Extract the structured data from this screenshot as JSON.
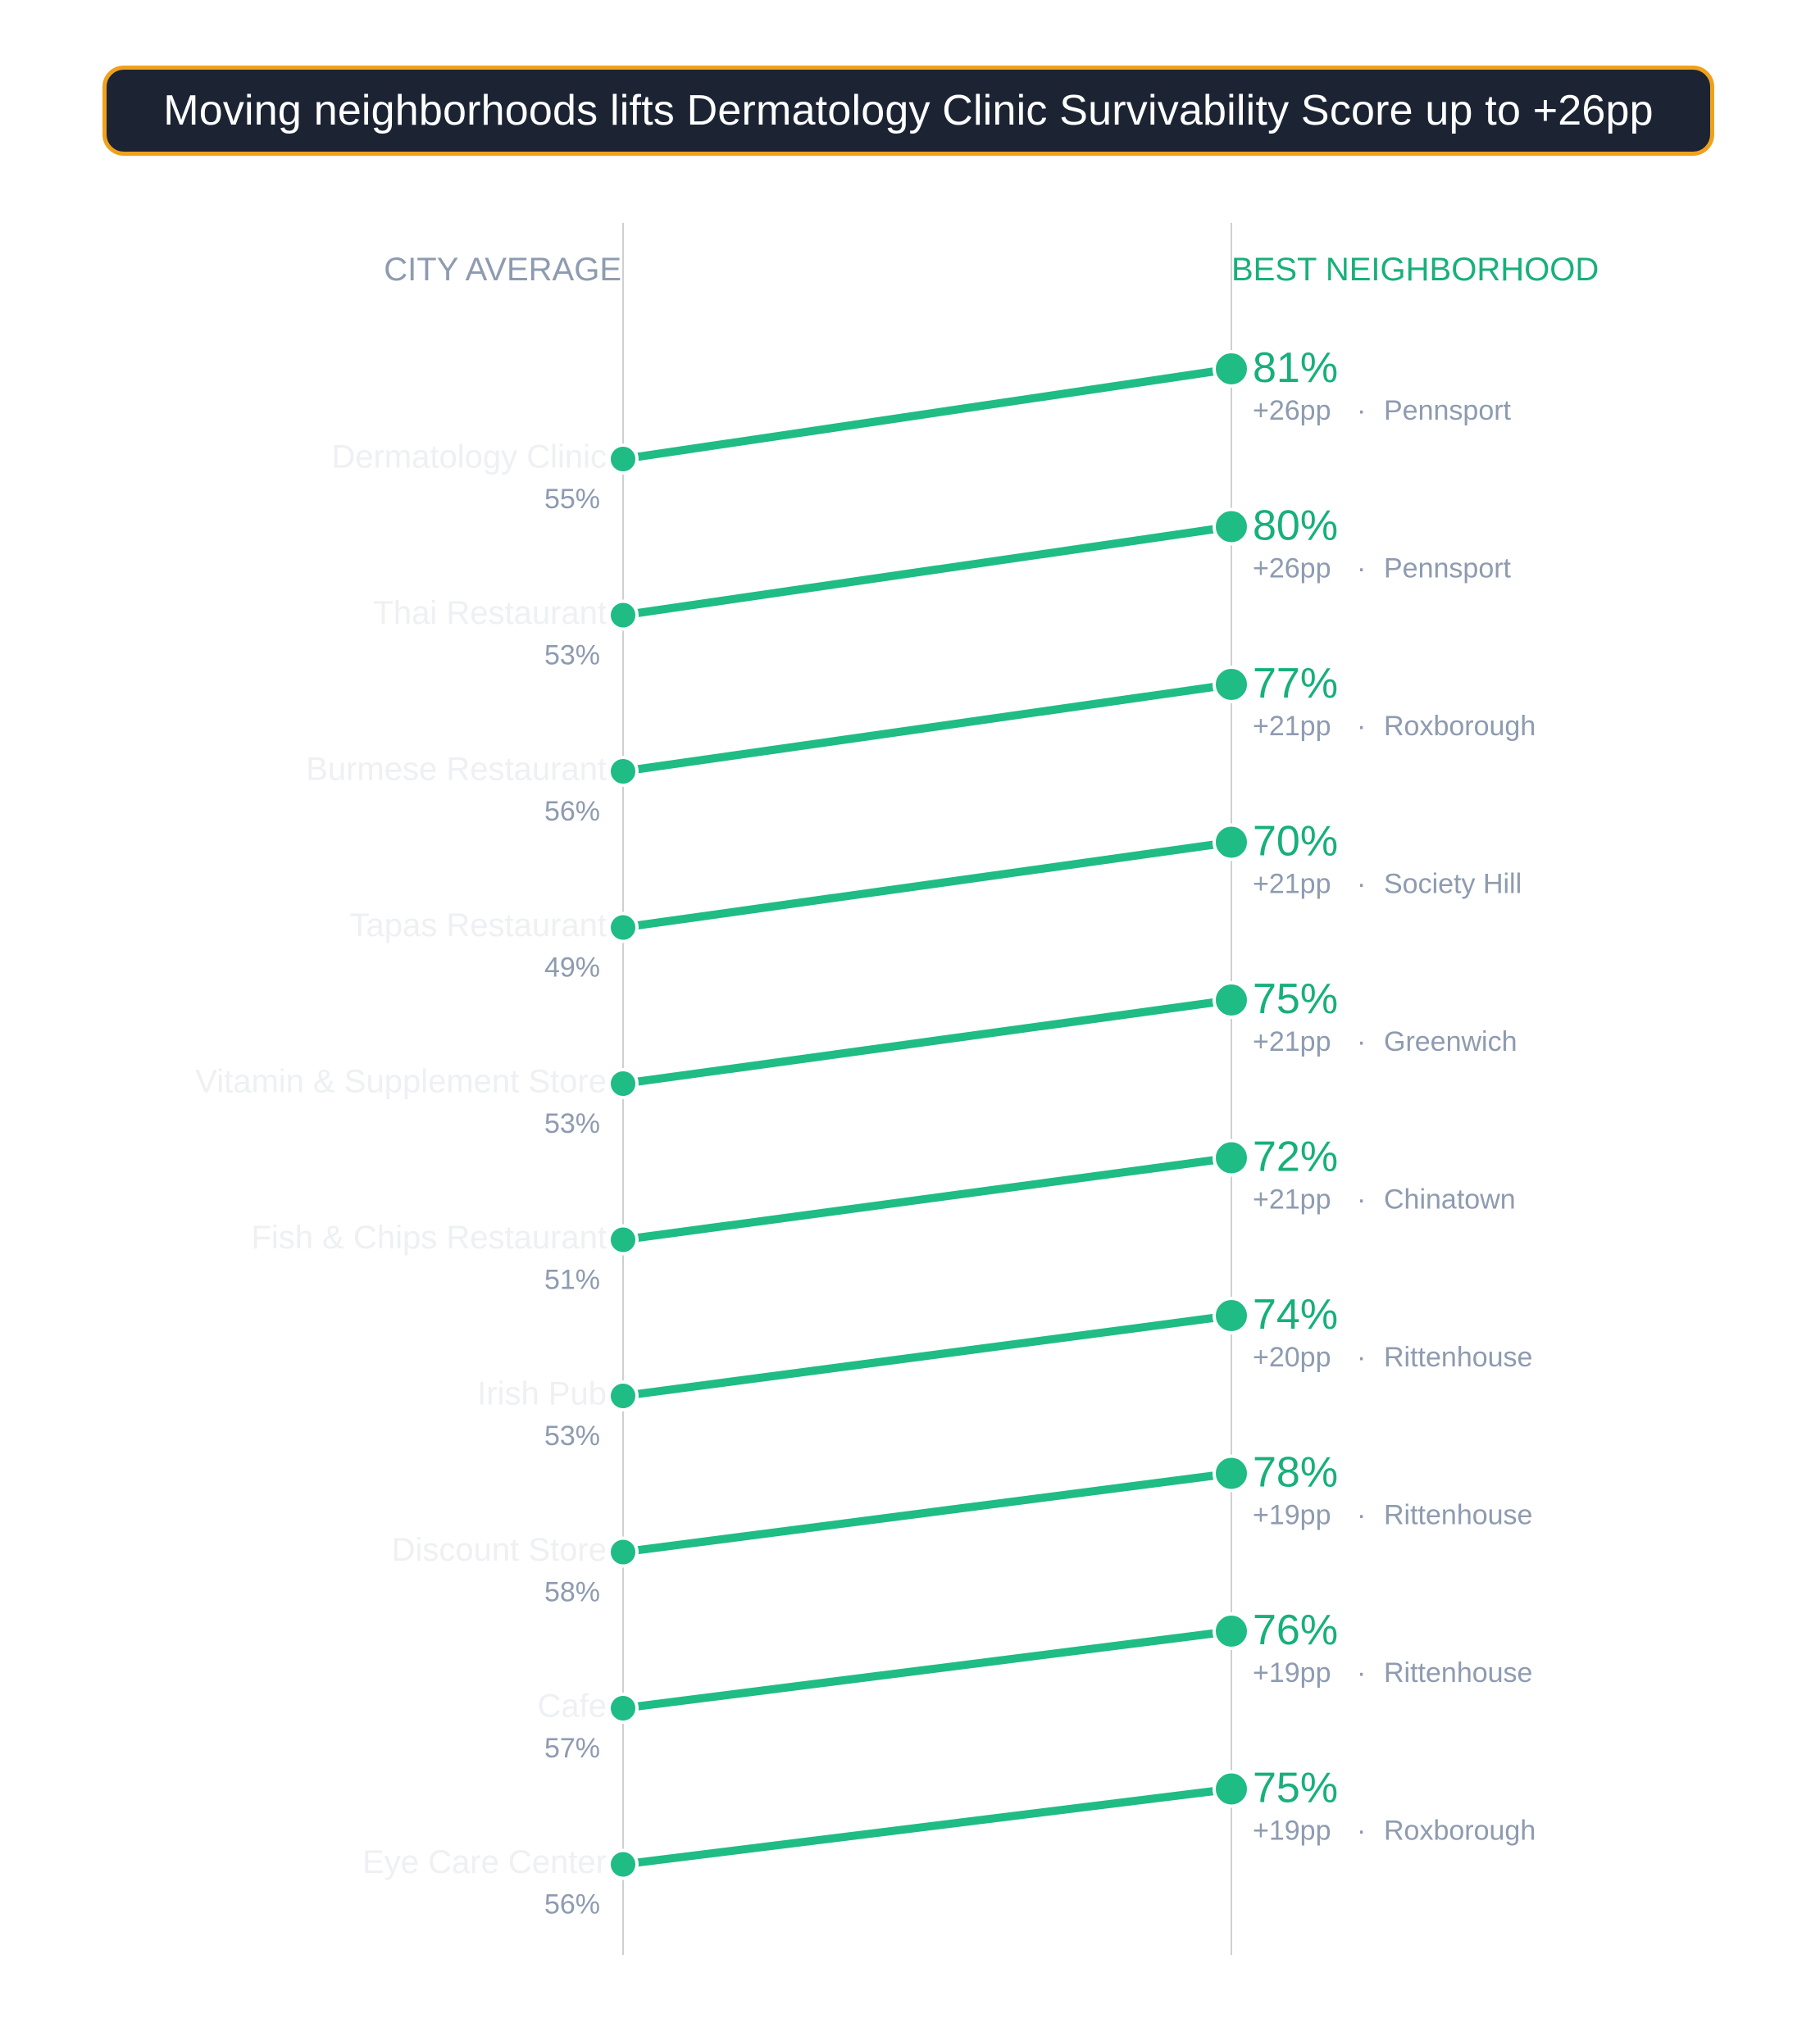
{
  "title": "Moving neighborhoods lifts Dermatology Clinic Survivability Score up to +26pp",
  "colors": {
    "line": "#1fbc85",
    "accent_text": "#17b07a",
    "muted_text": "#8e9bb0",
    "faded_label": "#eef0f3",
    "axis": "#cfcfcf",
    "title_bg": "#1c2434",
    "title_border": "#f0a11b"
  },
  "chart_data": {
    "type": "slope",
    "left_header": "CITY AVERAGE",
    "right_header": "BEST NEIGHBORHOOD",
    "unit": "%",
    "rows": [
      {
        "category": "Dermatology Clinic",
        "city_avg": 55,
        "best": 81,
        "delta": "+26pp",
        "neighborhood": "Pennsport"
      },
      {
        "category": "Thai Restaurant",
        "city_avg": 53,
        "best": 80,
        "delta": "+26pp",
        "neighborhood": "Pennsport"
      },
      {
        "category": "Burmese Restaurant",
        "city_avg": 56,
        "best": 77,
        "delta": "+21pp",
        "neighborhood": "Roxborough"
      },
      {
        "category": "Tapas Restaurant",
        "city_avg": 49,
        "best": 70,
        "delta": "+21pp",
        "neighborhood": "Society Hill"
      },
      {
        "category": "Vitamin & Supplement Store",
        "city_avg": 53,
        "best": 75,
        "delta": "+21pp",
        "neighborhood": "Greenwich"
      },
      {
        "category": "Fish & Chips Restaurant",
        "city_avg": 51,
        "best": 72,
        "delta": "+21pp",
        "neighborhood": "Chinatown"
      },
      {
        "category": "Irish Pub",
        "city_avg": 53,
        "best": 74,
        "delta": "+20pp",
        "neighborhood": "Rittenhouse"
      },
      {
        "category": "Discount Store",
        "city_avg": 58,
        "best": 78,
        "delta": "+19pp",
        "neighborhood": "Rittenhouse"
      },
      {
        "category": "Cafe",
        "city_avg": 57,
        "best": 76,
        "delta": "+19pp",
        "neighborhood": "Rittenhouse"
      },
      {
        "category": "Eye Care Center",
        "city_avg": 56,
        "best": 75,
        "delta": "+19pp",
        "neighborhood": "Roxborough"
      }
    ]
  }
}
